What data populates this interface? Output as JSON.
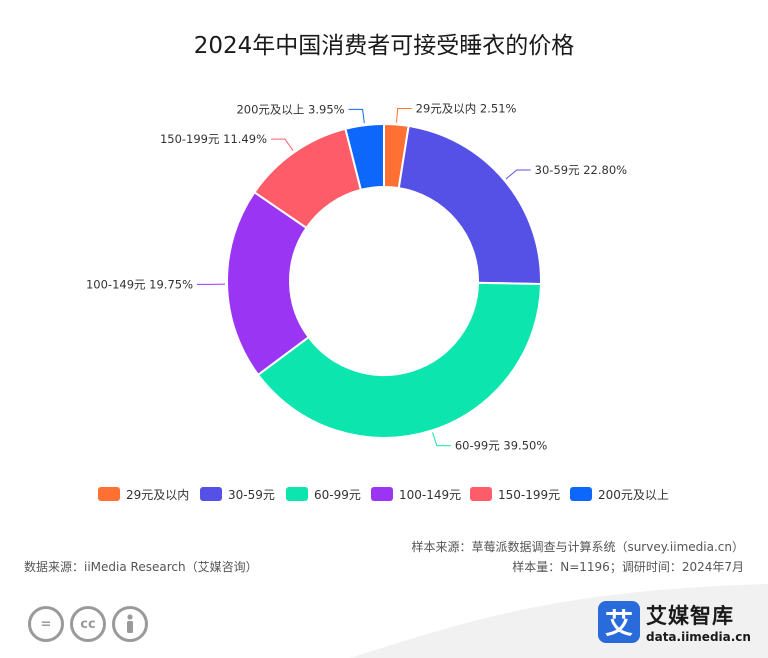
{
  "chart_data": {
    "type": "pie",
    "title": "2024年中国消费者可接受睡衣的价格",
    "categories": [
      "29元及以内",
      "30-59元",
      "60-99元",
      "100-149元",
      "150-199元",
      "200元及以上"
    ],
    "values": [
      2.51,
      22.8,
      39.5,
      19.75,
      11.49,
      3.95
    ],
    "unit": "%",
    "colors": [
      "#ff7032",
      "#5651e6",
      "#0de5ae",
      "#9a35f3",
      "#ff5c6a",
      "#0d67fb"
    ],
    "data_labels": [
      "29元及以内 2.51%",
      "30-59元 22.80%",
      "60-99元 39.50%",
      "100-149元 19.75%",
      "150-199元 11.49%",
      "200元及以上 3.95%"
    ],
    "legend_position": "bottom"
  },
  "footer": {
    "sample_source": "样本来源：草莓派数据调查与计算系统（survey.iimedia.cn）",
    "data_source": "数据来源：iiMedia Research（艾媒咨询）",
    "sample_info": "样本量：N=1196；调研时间：2024年7月"
  },
  "brand": {
    "logo_char": "艾",
    "name": "艾媒智库",
    "url": "data.iimedia.cn"
  },
  "license_icons": [
    "equal-icon",
    "cc-icon",
    "person-icon"
  ]
}
